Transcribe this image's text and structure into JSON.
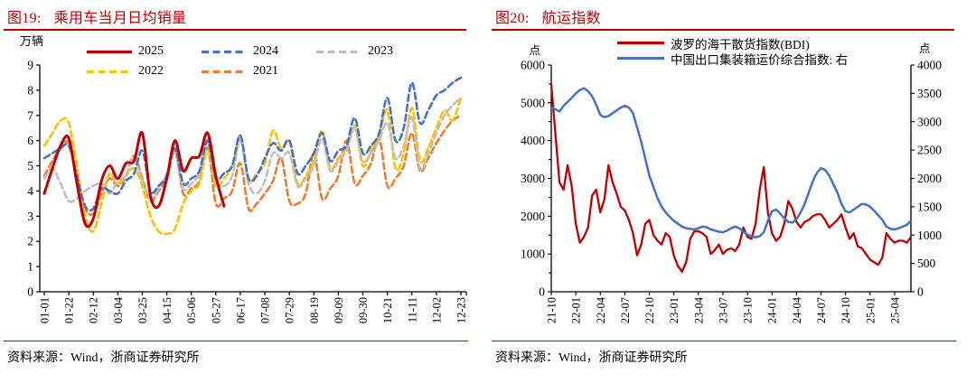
{
  "panels": [
    {
      "title_prefix": "图19:",
      "title": "乘用车当月日均销量",
      "source": "资料来源：Wind，浙商证券研究所"
    },
    {
      "title_prefix": "图20:",
      "title": "航运指数",
      "source": "资料来源：Wind，浙商证券研究所"
    }
  ],
  "colors": {
    "accent_red": "#c00000",
    "line_red": "#c00000",
    "line_blue": "#4472c4",
    "line_gray": "#bfbfbf",
    "line_yellow": "#ffc000",
    "line_orange": "#ed7d31"
  },
  "chart_data": [
    {
      "type": "line",
      "title": "乘用车当月日均销量",
      "unit_label": "万辆",
      "ylim": [
        0,
        9
      ],
      "yticks": [
        0,
        1,
        2,
        3,
        4,
        5,
        6,
        7,
        8,
        9
      ],
      "x_tick_labels": [
        "01-01",
        "01-22",
        "02-12",
        "03-04",
        "03-25",
        "04-15",
        "05-06",
        "05-27",
        "06-17",
        "07-08",
        "07-29",
        "08-19",
        "09-09",
        "09-30",
        "10-21",
        "11-11",
        "12-02",
        "12-23"
      ],
      "points_per_tick": 3,
      "n_points": 52,
      "x_unit": "week-of-year",
      "legend_rows": [
        [
          "2025",
          "2024",
          "2023"
        ],
        [
          "2022",
          "2021"
        ]
      ],
      "series": [
        {
          "name": "2025",
          "color": "#c00000",
          "style": "solid",
          "values": [
            3.9,
            4.9,
            5.8,
            6.1,
            4.3,
            2.7,
            2.9,
            4.4,
            5.0,
            4.5,
            5.1,
            5.2,
            6.3,
            3.8,
            3.4,
            4.5,
            6.0,
            4.8,
            5.3,
            5.4,
            6.3,
            4.6,
            3.4
          ]
        },
        {
          "name": "2024",
          "color": "#4472c4",
          "style": "dashed",
          "values": [
            5.3,
            5.5,
            5.7,
            5.8,
            4.6,
            3.4,
            3.3,
            4.1,
            4.0,
            3.9,
            4.4,
            4.7,
            5.6,
            4.0,
            4.2,
            4.6,
            5.7,
            4.3,
            4.5,
            4.8,
            6.0,
            4.5,
            4.7,
            5.0,
            6.2,
            4.5,
            4.6,
            5.3,
            5.9,
            5.6,
            6.0,
            4.7,
            5.0,
            5.5,
            6.3,
            5.2,
            5.6,
            5.8,
            6.9,
            5.5,
            5.8,
            6.3,
            7.7,
            6.0,
            6.5,
            8.3,
            6.7,
            7.2,
            7.8,
            8.0,
            8.3,
            8.5
          ]
        },
        {
          "name": "2023",
          "color": "#bfbfbf",
          "style": "dashed",
          "values": [
            4.5,
            4.9,
            4.3,
            3.6,
            3.7,
            4.0,
            4.2,
            4.3,
            3.9,
            4.4,
            4.6,
            5.3,
            4.4,
            3.7,
            4.1,
            4.7,
            5.5,
            4.1,
            4.3,
            4.7,
            5.9,
            4.4,
            4.2,
            4.6,
            6.0,
            4.3,
            3.9,
            4.4,
            5.5,
            5.3,
            5.5,
            4.2,
            4.5,
            5.0,
            6.1,
            4.8,
            5.2,
            5.6,
            6.5,
            5.2,
            5.5,
            6.0,
            6.7,
            5.3,
            5.8,
            6.9,
            4.9,
            5.5,
            6.3,
            7.0,
            7.4,
            7.7
          ]
        },
        {
          "name": "2022",
          "color": "#ffc000",
          "style": "dashed",
          "values": [
            5.8,
            6.3,
            6.8,
            6.7,
            5.0,
            3.0,
            2.4,
            3.5,
            4.7,
            4.3,
            4.6,
            4.9,
            4.2,
            3.0,
            2.4,
            2.3,
            2.5,
            3.5,
            4.0,
            4.3,
            5.6,
            4.2,
            4.5,
            5.0,
            6.2,
            4.4,
            4.7,
            5.1,
            6.4,
            5.7,
            6.0,
            4.3,
            4.6,
            5.2,
            6.4,
            4.9,
            5.3,
            5.7,
            6.6,
            5.0,
            5.6,
            6.2,
            7.2,
            4.9,
            5.5,
            7.3,
            5.2,
            5.7,
            6.5,
            7.2,
            6.8,
            7.7
          ]
        },
        {
          "name": "2021",
          "color": "#ed7d31",
          "style": "dashed",
          "values": [
            4.6,
            5.2,
            5.7,
            5.9,
            4.4,
            3.3,
            3.1,
            3.9,
            4.5,
            4.2,
            4.6,
            5.4,
            4.5,
            3.6,
            4.0,
            4.5,
            5.6,
            3.9,
            4.1,
            4.4,
            5.7,
            3.5,
            3.7,
            4.0,
            5.1,
            3.3,
            3.5,
            3.9,
            4.4,
            5.3,
            3.6,
            3.5,
            3.9,
            5.5,
            3.7,
            4.1,
            4.6,
            6.0,
            4.3,
            4.6,
            5.1,
            6.1,
            4.2,
            4.5,
            5.0,
            6.3,
            4.8,
            5.3,
            5.9,
            6.4,
            6.8,
            7.0
          ]
        }
      ]
    },
    {
      "type": "line",
      "title": "航运指数",
      "left_axis": {
        "label": "点",
        "ylim": [
          0,
          6000
        ],
        "major_step": 1000,
        "minor_step": 500
      },
      "right_axis": {
        "label": "点",
        "ylim": [
          0,
          4000
        ],
        "major_step": 500
      },
      "x_tick_labels": [
        "21-10",
        "22-01",
        "22-04",
        "22-07",
        "22-10",
        "23-01",
        "23-04",
        "23-07",
        "23-10",
        "24-01",
        "24-04",
        "24-07",
        "24-10",
        "25-01",
        "25-04"
      ],
      "points_per_tick": 6,
      "x_unit": "semimonthly, 2021-10 to 2025-06",
      "series": [
        {
          "name": "波罗的海干散货指数(BDI)",
          "axis": "left",
          "color": "#c00000",
          "style": "solid",
          "values": [
            5500,
            4200,
            2900,
            2700,
            3350,
            2800,
            1800,
            1300,
            1450,
            1700,
            2550,
            2700,
            2100,
            2450,
            3350,
            2900,
            2600,
            2250,
            2150,
            1900,
            1550,
            965,
            1250,
            1800,
            1900,
            1500,
            1350,
            1250,
            1550,
            1450,
            950,
            680,
            530,
            780,
            1400,
            1600,
            1600,
            1550,
            1450,
            1000,
            1100,
            1250,
            1000,
            1110,
            1150,
            1080,
            1250,
            1700,
            1450,
            1400,
            1800,
            2700,
            3300,
            2100,
            1550,
            1350,
            1450,
            1800,
            2400,
            2200,
            1850,
            1700,
            1850,
            1900,
            2000,
            2050,
            2050,
            1900,
            1700,
            1800,
            1900,
            2050,
            1700,
            1400,
            1550,
            1200,
            1150,
            1000,
            850,
            780,
            715,
            900,
            1550,
            1400,
            1300,
            1350,
            1350,
            1300,
            1450
          ]
        },
        {
          "name": "中国出口集装箱运价综合指数: 右",
          "axis": "right",
          "color": "#4472c4",
          "style": "solid",
          "values": [
            3250,
            3220,
            3180,
            3280,
            3350,
            3420,
            3500,
            3560,
            3590,
            3540,
            3450,
            3300,
            3120,
            3080,
            3100,
            3150,
            3200,
            3250,
            3280,
            3250,
            3150,
            2900,
            2650,
            2350,
            2050,
            1850,
            1650,
            1500,
            1400,
            1320,
            1250,
            1200,
            1150,
            1120,
            1110,
            1100,
            1120,
            1150,
            1140,
            1100,
            1080,
            1060,
            1050,
            1080,
            1120,
            1150,
            1120,
            1060,
            1010,
            980,
            960,
            980,
            1050,
            1250,
            1420,
            1450,
            1380,
            1300,
            1230,
            1220,
            1280,
            1400,
            1550,
            1750,
            1950,
            2100,
            2180,
            2150,
            2050,
            1900,
            1750,
            1550,
            1420,
            1400,
            1450,
            1500,
            1550,
            1540,
            1500,
            1430,
            1350,
            1270,
            1150,
            1110,
            1100,
            1120,
            1150,
            1180,
            1250
          ]
        }
      ]
    }
  ]
}
